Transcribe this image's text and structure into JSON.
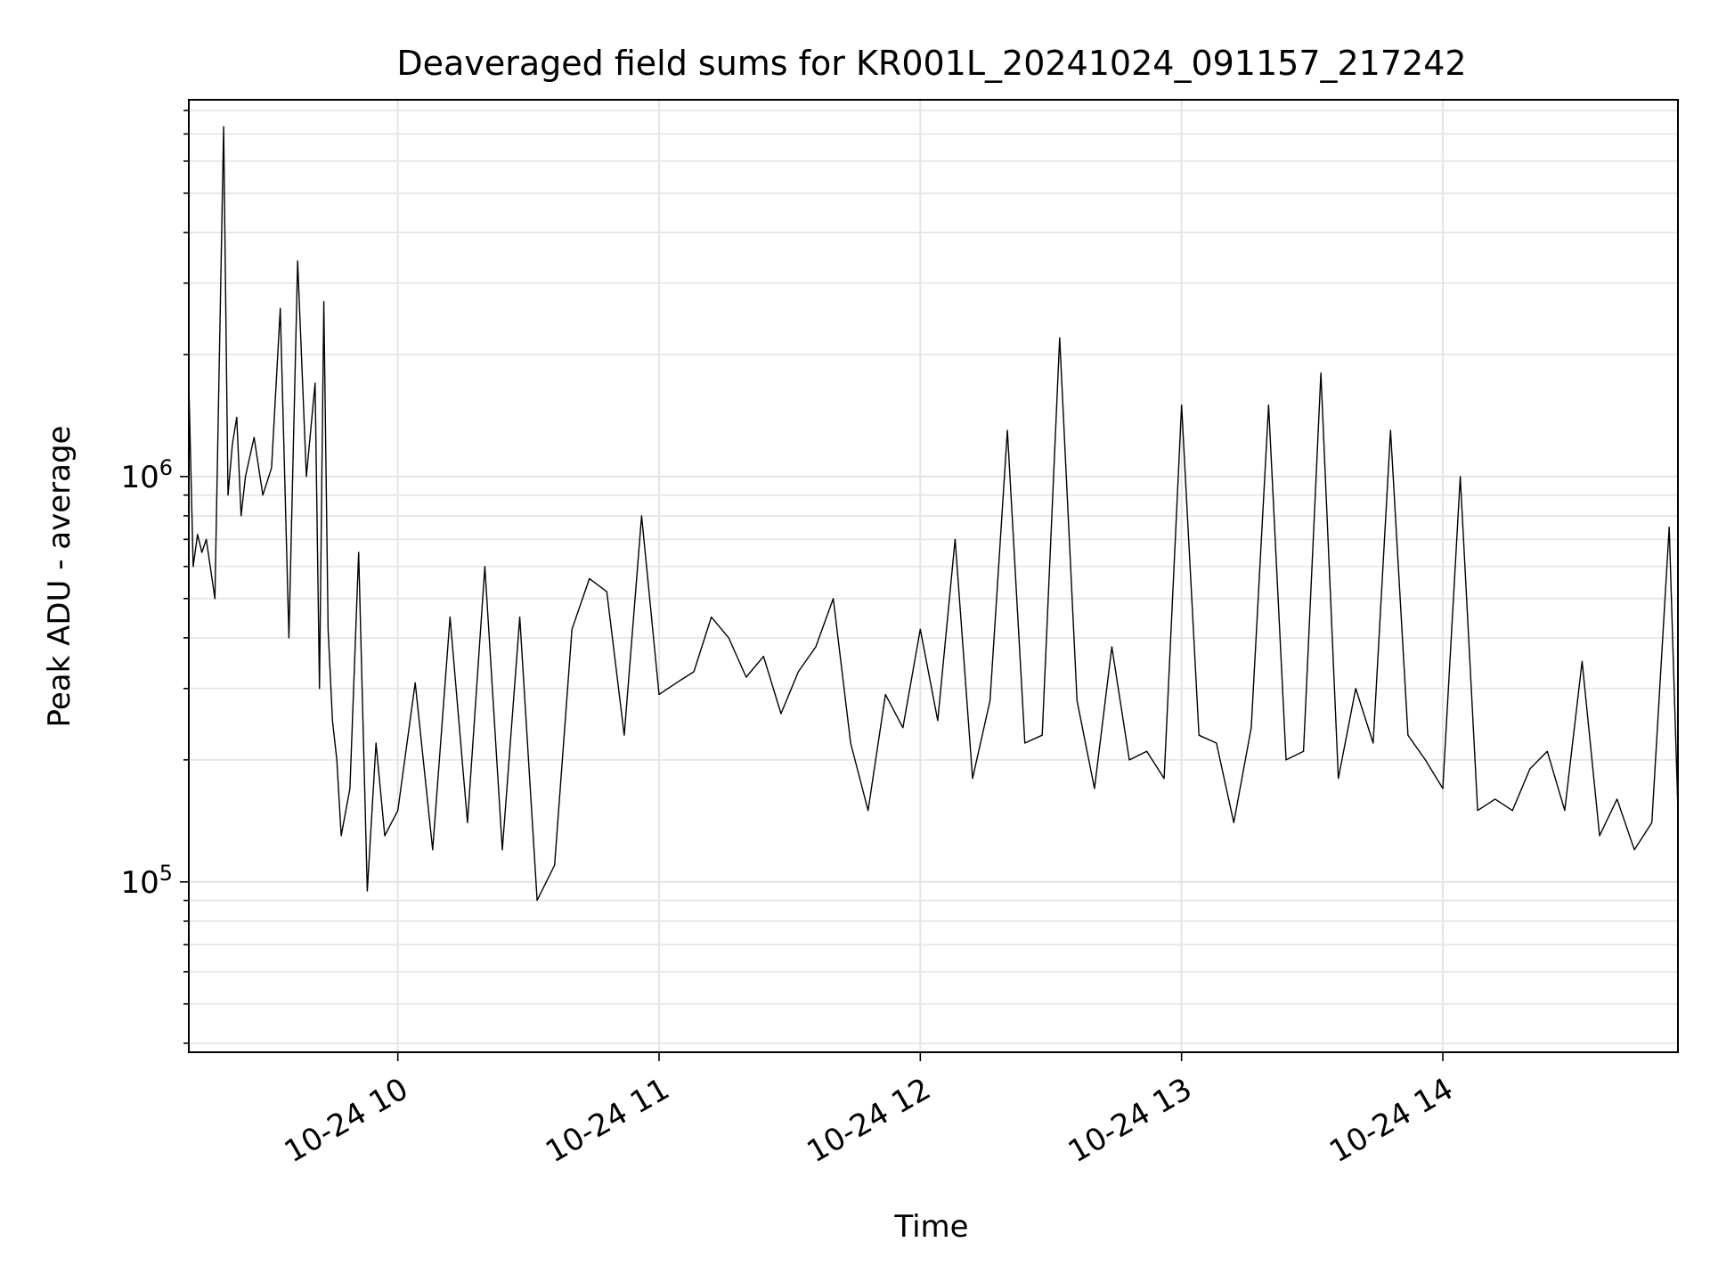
{
  "chart_data": {
    "type": "line",
    "title": "Deaveraged field sums for KR001L_20241024_091157_217242",
    "xlabel": "Time",
    "ylabel": "Peak ADU - average",
    "y_scale": "log",
    "ylim": [
      38000,
      8500000
    ],
    "xlim": [
      "2024-10-24 09:12",
      "2024-10-24 14:54"
    ],
    "x_ticks": [
      {
        "value": "2024-10-24 10:00",
        "label": "10-24 10"
      },
      {
        "value": "2024-10-24 11:00",
        "label": "10-24 11"
      },
      {
        "value": "2024-10-24 12:00",
        "label": "10-24 12"
      },
      {
        "value": "2024-10-24 13:00",
        "label": "10-24 13"
      },
      {
        "value": "2024-10-24 14:00",
        "label": "10-24 14"
      }
    ],
    "y_ticks": [
      {
        "value": 100000,
        "base": "10",
        "exp": "5"
      },
      {
        "value": 1000000,
        "base": "10",
        "exp": "6"
      }
    ],
    "grid": true,
    "line_color": "#000000",
    "series": [
      {
        "x": [
          "2024-10-24 09:12",
          "2024-10-24 09:13",
          "2024-10-24 09:14",
          "2024-10-24 09:15",
          "2024-10-24 09:16",
          "2024-10-24 09:18",
          "2024-10-24 09:20",
          "2024-10-24 09:21",
          "2024-10-24 09:22",
          "2024-10-24 09:23",
          "2024-10-24 09:24",
          "2024-10-24 09:25",
          "2024-10-24 09:27",
          "2024-10-24 09:29",
          "2024-10-24 09:31",
          "2024-10-24 09:33",
          "2024-10-24 09:35",
          "2024-10-24 09:37",
          "2024-10-24 09:39",
          "2024-10-24 09:41",
          "2024-10-24 09:42",
          "2024-10-24 09:43",
          "2024-10-24 09:44",
          "2024-10-24 09:45",
          "2024-10-24 09:46",
          "2024-10-24 09:47",
          "2024-10-24 09:49",
          "2024-10-24 09:51",
          "2024-10-24 09:53",
          "2024-10-24 09:55",
          "2024-10-24 09:57",
          "2024-10-24 10:00",
          "2024-10-24 10:04",
          "2024-10-24 10:08",
          "2024-10-24 10:12",
          "2024-10-24 10:16",
          "2024-10-24 10:20",
          "2024-10-24 10:24",
          "2024-10-24 10:28",
          "2024-10-24 10:32",
          "2024-10-24 10:36",
          "2024-10-24 10:40",
          "2024-10-24 10:44",
          "2024-10-24 10:48",
          "2024-10-24 10:52",
          "2024-10-24 10:56",
          "2024-10-24 11:00",
          "2024-10-24 11:04",
          "2024-10-24 11:08",
          "2024-10-24 11:12",
          "2024-10-24 11:16",
          "2024-10-24 11:20",
          "2024-10-24 11:24",
          "2024-10-24 11:28",
          "2024-10-24 11:32",
          "2024-10-24 11:36",
          "2024-10-24 11:40",
          "2024-10-24 11:44",
          "2024-10-24 11:48",
          "2024-10-24 11:52",
          "2024-10-24 11:56",
          "2024-10-24 12:00",
          "2024-10-24 12:04",
          "2024-10-24 12:08",
          "2024-10-24 12:12",
          "2024-10-24 12:16",
          "2024-10-24 12:20",
          "2024-10-24 12:24",
          "2024-10-24 12:28",
          "2024-10-24 12:32",
          "2024-10-24 12:36",
          "2024-10-24 12:40",
          "2024-10-24 12:44",
          "2024-10-24 12:48",
          "2024-10-24 12:52",
          "2024-10-24 12:56",
          "2024-10-24 13:00",
          "2024-10-24 13:04",
          "2024-10-24 13:08",
          "2024-10-24 13:12",
          "2024-10-24 13:16",
          "2024-10-24 13:20",
          "2024-10-24 13:24",
          "2024-10-24 13:28",
          "2024-10-24 13:32",
          "2024-10-24 13:36",
          "2024-10-24 13:40",
          "2024-10-24 13:44",
          "2024-10-24 13:48",
          "2024-10-24 13:52",
          "2024-10-24 13:56",
          "2024-10-24 14:00",
          "2024-10-24 14:04",
          "2024-10-24 14:08",
          "2024-10-24 14:12",
          "2024-10-24 14:16",
          "2024-10-24 14:20",
          "2024-10-24 14:24",
          "2024-10-24 14:28",
          "2024-10-24 14:32",
          "2024-10-24 14:36",
          "2024-10-24 14:40",
          "2024-10-24 14:44",
          "2024-10-24 14:48",
          "2024-10-24 14:52",
          "2024-10-24 14:54"
        ],
        "values": [
          1700000,
          600000,
          720000,
          650000,
          700000,
          500000,
          7300000,
          900000,
          1200000,
          1400000,
          800000,
          1000000,
          1250000,
          900000,
          1050000,
          2600000,
          400000,
          3400000,
          1000000,
          1700000,
          300000,
          2700000,
          420000,
          250000,
          200000,
          130000,
          170000,
          650000,
          95000,
          220000,
          130000,
          150000,
          310000,
          120000,
          450000,
          140000,
          600000,
          120000,
          450000,
          90000,
          110000,
          420000,
          560000,
          520000,
          230000,
          800000,
          290000,
          310000,
          330000,
          450000,
          400000,
          320000,
          360000,
          260000,
          330000,
          380000,
          500000,
          220000,
          150000,
          290000,
          240000,
          420000,
          250000,
          700000,
          180000,
          280000,
          1300000,
          220000,
          230000,
          2200000,
          280000,
          170000,
          380000,
          200000,
          210000,
          180000,
          1500000,
          230000,
          220000,
          140000,
          240000,
          1500000,
          200000,
          210000,
          1800000,
          180000,
          300000,
          220000,
          1300000,
          230000,
          200000,
          170000,
          1000000,
          150000,
          160000,
          150000,
          190000,
          210000,
          150000,
          350000,
          130000,
          160000,
          120000,
          140000,
          750000,
          150000
        ]
      }
    ]
  }
}
